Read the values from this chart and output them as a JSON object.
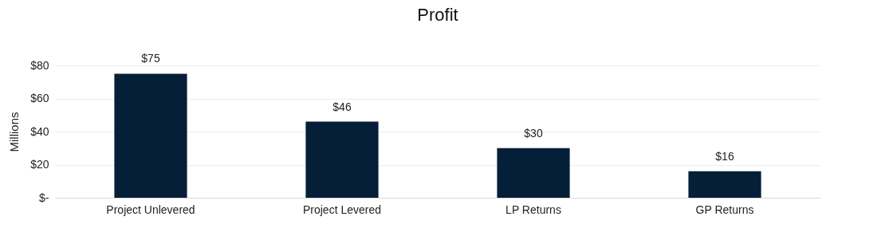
{
  "chart_data": {
    "type": "bar",
    "title": "Profit",
    "ylabel": "Millions",
    "categories": [
      "Project Unlevered",
      "Project Levered",
      "LP Returns",
      "GP Returns"
    ],
    "values": [
      75,
      46,
      30,
      16
    ],
    "color": "#061f38",
    "value_labels": [
      "$75",
      "$46",
      "$30",
      "$16"
    ],
    "ylim": [
      0,
      80
    ],
    "yticks": [
      {
        "value": 0,
        "label": "$-"
      },
      {
        "value": 20,
        "label": "$20"
      },
      {
        "value": 40,
        "label": "$40"
      },
      {
        "value": 60,
        "label": "$60"
      },
      {
        "value": 80,
        "label": "$80"
      }
    ],
    "grid": "y"
  }
}
